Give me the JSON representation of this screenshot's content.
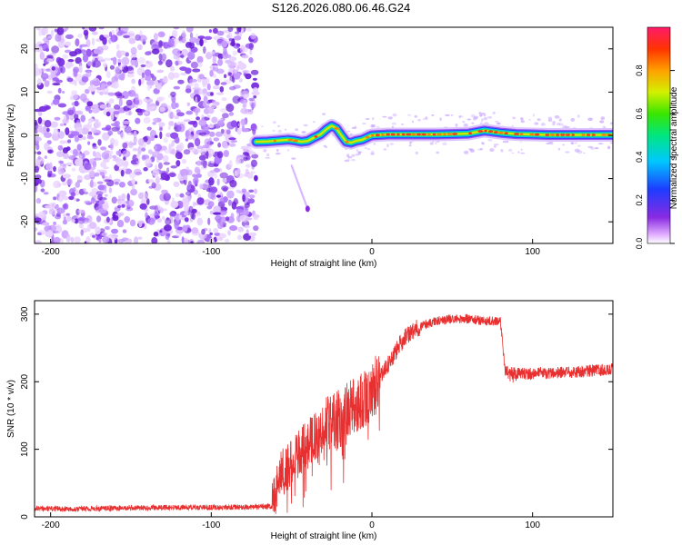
{
  "title": "S126.2026.080.06.46.G24",
  "chart_data": [
    {
      "type": "heatmap",
      "xlabel": "Height of straight line (km)",
      "ylabel": "Frequency (Hz)",
      "xlim": [
        -210,
        150
      ],
      "ylim": [
        -25,
        25
      ],
      "xticks": [
        -200,
        -100,
        0,
        100
      ],
      "xtick_labels": [
        "-200",
        "-100",
        "0",
        "100"
      ],
      "yticks": [
        -20,
        -10,
        0,
        10,
        20
      ],
      "ytick_labels": [
        "-20",
        "-10",
        "0",
        "10",
        "20"
      ],
      "colorbar": {
        "label": "Normalized spectral amplitude",
        "range": [
          0,
          1
        ],
        "ticks": [
          0.0,
          0.2,
          0.4,
          0.6,
          0.8
        ],
        "tick_labels": [
          "0.0",
          "0.2",
          "0.4",
          "0.6",
          "0.8"
        ]
      },
      "noise_region_x": [
        -210,
        -72
      ],
      "ridge": {
        "x": [
          -72,
          -65,
          -58,
          -52,
          -48,
          -44,
          -40,
          -36,
          -32,
          -28,
          -25,
          -22,
          -19,
          -16,
          -13,
          -10,
          -6,
          -2,
          0,
          10,
          20,
          30,
          40,
          50,
          60,
          70,
          80,
          90,
          100,
          110,
          120,
          130,
          140,
          150
        ],
        "freq": [
          -1.5,
          -1.4,
          -1.2,
          -1.0,
          -1.2,
          -1.5,
          -1.3,
          -0.5,
          0.2,
          1.5,
          2.2,
          1.6,
          0.0,
          -1.5,
          -1.7,
          -1.3,
          -1.0,
          -0.3,
          0.0,
          0.2,
          0.2,
          0.2,
          0.2,
          0.3,
          0.4,
          1.1,
          0.6,
          0.3,
          0.2,
          0.1,
          0.1,
          0.1,
          0.1,
          0.1
        ]
      },
      "tail": {
        "x": [
          -50,
          -46,
          -43,
          -41,
          -40
        ],
        "freq": [
          -7,
          -11,
          -14,
          -16,
          -17
        ]
      }
    },
    {
      "type": "line",
      "xlabel": "Height of straight line (km)",
      "ylabel": "SNR (10 * v/v)",
      "xlim": [
        -210,
        150
      ],
      "ylim": [
        0,
        320
      ],
      "xticks": [
        -200,
        -100,
        0,
        100
      ],
      "xtick_labels": [
        "-200",
        "-100",
        "0",
        "100"
      ],
      "yticks": [
        0,
        100,
        200,
        300
      ],
      "ytick_labels": [
        "0",
        "100",
        "200",
        "300"
      ],
      "series": [
        {
          "name": "SNR",
          "color": "#e83030",
          "x": [
            -210,
            -180,
            -150,
            -120,
            -90,
            -62,
            -58,
            -50,
            -40,
            -30,
            -20,
            -10,
            0,
            10,
            20,
            30,
            40,
            50,
            60,
            70,
            80,
            83,
            90,
            100,
            110,
            120,
            130,
            140,
            150
          ],
          "y": [
            12,
            12,
            13,
            14,
            14,
            15,
            60,
            80,
            110,
            130,
            145,
            165,
            185,
            225,
            265,
            282,
            290,
            293,
            293,
            290,
            290,
            215,
            212,
            212,
            213,
            213,
            215,
            217,
            218
          ]
        }
      ]
    }
  ]
}
